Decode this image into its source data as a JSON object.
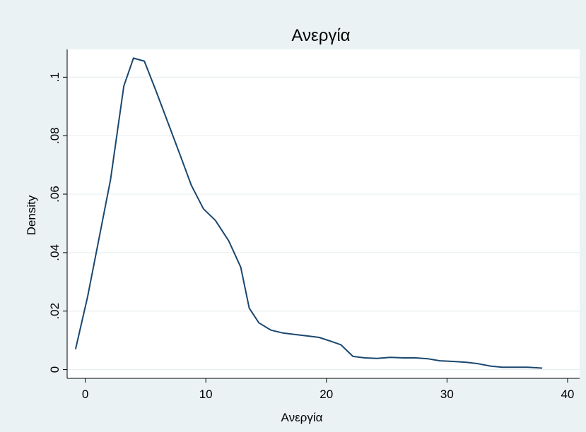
{
  "chart_data": {
    "type": "line",
    "title": "Ανεργία",
    "xlabel": "Ανεργία",
    "ylabel": "Density",
    "xlim": [
      -1.5,
      41
    ],
    "ylim": [
      -0.003,
      0.1095
    ],
    "x_ticks": [
      0,
      10,
      20,
      30,
      40
    ],
    "x_tick_labels": [
      "0",
      "10",
      "20",
      "30",
      "40"
    ],
    "y_ticks": [
      0,
      0.02,
      0.04,
      0.06,
      0.08,
      0.1
    ],
    "y_tick_labels": [
      "0",
      ".02",
      ".04",
      ".06",
      ".08",
      ".1"
    ],
    "grid": true,
    "series": [
      {
        "color": "#1a476f",
        "x": [
          -0.8,
          0.2,
          1.1,
          2.1,
          3.2,
          4.0,
          4.9,
          5.9,
          6.9,
          7.9,
          8.8,
          9.8,
          10.8,
          11.9,
          12.9,
          13.6,
          14.4,
          15.4,
          16.4,
          17.4,
          18.4,
          19.4,
          20.5,
          21.2,
          22.2,
          23.2,
          24.2,
          25.3,
          26.4,
          27.4,
          28.4,
          29.4,
          30.5,
          31.6,
          32.6,
          33.6,
          34.6,
          35.7,
          36.7,
          37.9
        ],
        "y": [
          0.007,
          0.025,
          0.044,
          0.065,
          0.097,
          0.1065,
          0.1055,
          0.095,
          0.084,
          0.073,
          0.063,
          0.055,
          0.051,
          0.044,
          0.035,
          0.021,
          0.016,
          0.0135,
          0.0125,
          0.012,
          0.0115,
          0.011,
          0.0095,
          0.0085,
          0.0045,
          0.004,
          0.0038,
          0.0042,
          0.004,
          0.004,
          0.0037,
          0.003,
          0.0028,
          0.0025,
          0.002,
          0.0012,
          0.0008,
          0.0008,
          0.0008,
          0.0005
        ]
      }
    ]
  }
}
